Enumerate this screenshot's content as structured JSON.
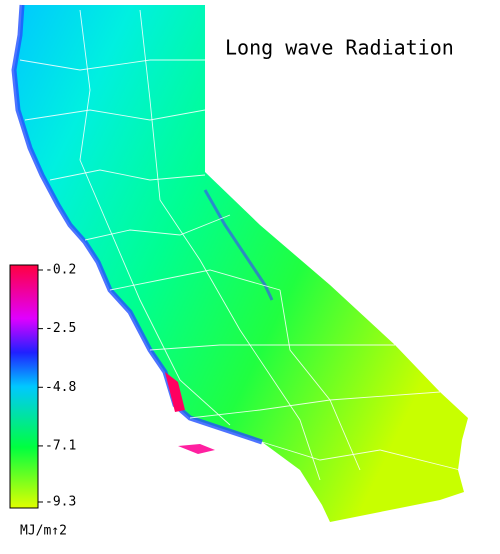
{
  "title": "Long wave Radiation",
  "colorbar": {
    "lim": [
      -0.2,
      -9.3
    ],
    "ticks": [
      -0.2,
      -2.5,
      -4.8,
      -7.1,
      -9.3
    ],
    "unit": "MJ/m↑2"
  }
}
